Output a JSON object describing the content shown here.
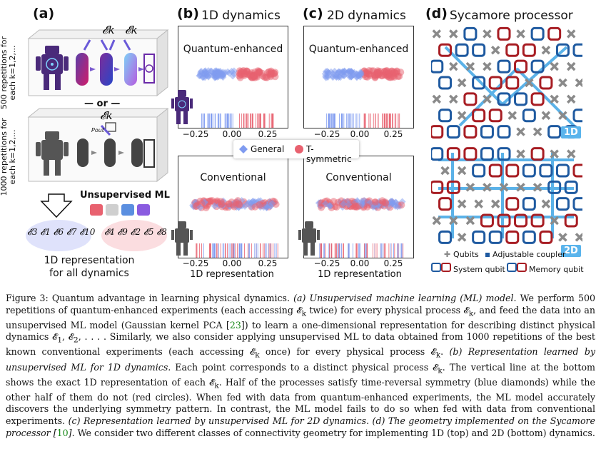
{
  "panels": {
    "a": {
      "letter": "(a)",
      "rep_quantum": "500 repetitions for each k=1,2,...",
      "rep_conventional": "1000 repetitions for each k=1,2,...",
      "or_text": "— or —",
      "ek_label": "𝓔k",
      "pout_label": "Pout",
      "unsupervised_title": "Unsupervised ML",
      "rep_title_line1": "1D representation",
      "rep_title_line2": "for all dynamics",
      "cluster_left": "𝓔3 𝓔1 𝓔6 𝓔7 𝓔10",
      "cluster_right": "𝓔4 𝓔9 𝓔2 𝓔5 𝓔8"
    },
    "b": {
      "letter": "(b)",
      "title": "1D dynamics",
      "top_label": "Quantum-enhanced",
      "bottom_label": "Conventional",
      "xlabel": "1D representation",
      "ticks": [
        "−0.25",
        "0.00",
        "0.25"
      ]
    },
    "c": {
      "letter": "(c)",
      "title": "2D dynamics",
      "top_label": "Quantum-enhanced",
      "bottom_label": "Conventional",
      "xlabel": "1D representation",
      "ticks": [
        "−0.25",
        "0.00",
        "0.25"
      ]
    },
    "d": {
      "letter": "(d)",
      "title": "Sycamore processor",
      "badge_top": "1D",
      "badge_bottom": "2D",
      "legend_qubits": "Qubits",
      "legend_coupler": "Adjustable coupler",
      "legend_system": "System qubit",
      "legend_memory": "Memory qubit"
    },
    "legend": {
      "general": "General",
      "tsym": "T-symmetric"
    }
  },
  "colors": {
    "blue": "#7f9bf0",
    "red": "#e8616f",
    "dark_red": "#a71d23",
    "dark_blue": "#1f5aa0",
    "light_blue": "#5bb2e8",
    "grey": "#8a8a8a"
  },
  "caption": {
    "s1": "Figure 3:   Quantum advantage in learning physical dynamics. ",
    "s2": "(a) Unsupervised machine learning (ML) model.",
    "s3": " We perform 500 repetitions of quantum-enhanced experiments (each accessing 𝓔",
    "s4": " twice) for every physical process 𝓔",
    "s5": ", and feed the data into an unsupervised ML model (Gaussian kernel PCA [",
    "s6": "23",
    "s7": "]) to learn a one-dimensional representation for describing distinct physical dynamics 𝓔",
    "s8": ", 𝓔",
    "s9": ", . . . . Similarly, we also consider applying unsupervised ML to data obtained from 1000 repetitions of the best known conventional experiments (each accessing 𝓔",
    "s10": " once) for every physical process 𝓔",
    "s11": ". ",
    "s12": "(b) Representation learned by unsupervised ML for 1D dynamics.",
    "s13": " Each point corresponds to a distinct physical process 𝓔",
    "s14": ". The vertical line at the bottom shows the exact 1D representation of each 𝓔",
    "s15": ". Half of the processes satisfy time-reversal symmetry (blue diamonds) while the other half of them do not (red circles). When fed with data from quantum-enhanced experiments, the ML model accurately discovers the underlying symmetry pattern. In contrast, the ML model fails to do so when fed with data from conventional experiments. ",
    "s16": "(c) Representation learned by unsupervised ML for 2D dynamics. (d) The geometry implemented on the Sycamore processor [",
    "s17": "10",
    "s18": "].",
    "s19": " We consider two different classes of connectivity geometry for implementing 1D (top) and 2D (bottom) dynamics.",
    "sub_k": "k",
    "sub_1": "1",
    "sub_2": "2"
  }
}
